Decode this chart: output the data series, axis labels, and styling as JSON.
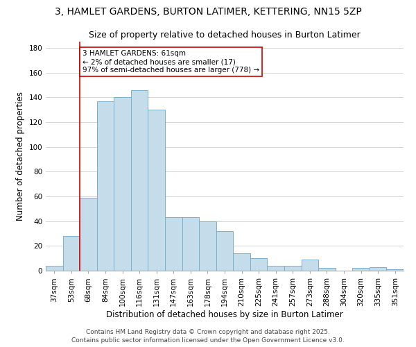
{
  "title": "3, HAMLET GARDENS, BURTON LATIMER, KETTERING, NN15 5ZP",
  "subtitle": "Size of property relative to detached houses in Burton Latimer",
  "xlabel": "Distribution of detached houses by size in Burton Latimer",
  "ylabel": "Number of detached properties",
  "bins": [
    "37sqm",
    "53sqm",
    "68sqm",
    "84sqm",
    "100sqm",
    "116sqm",
    "131sqm",
    "147sqm",
    "163sqm",
    "178sqm",
    "194sqm",
    "210sqm",
    "225sqm",
    "241sqm",
    "257sqm",
    "273sqm",
    "288sqm",
    "304sqm",
    "320sqm",
    "335sqm",
    "351sqm"
  ],
  "bar_heights": [
    4,
    28,
    59,
    137,
    140,
    146,
    130,
    43,
    43,
    40,
    32,
    14,
    10,
    4,
    4,
    9,
    2,
    0,
    2,
    3,
    1
  ],
  "bar_color": "#c5dcea",
  "bar_edge_color": "#7ab0cc",
  "grid_color": "#cccccc",
  "vline_x_index": 1.5,
  "vline_color": "#cc0000",
  "annotation_text": "3 HAMLET GARDENS: 61sqm\n← 2% of detached houses are smaller (17)\n97% of semi-detached houses are larger (778) →",
  "annotation_box_color": "#ffffff",
  "annotation_box_edge": "#cc0000",
  "ylim": [
    0,
    185
  ],
  "yticks": [
    0,
    20,
    40,
    60,
    80,
    100,
    120,
    140,
    160,
    180
  ],
  "footer1": "Contains HM Land Registry data © Crown copyright and database right 2025.",
  "footer2": "Contains public sector information licensed under the Open Government Licence v3.0.",
  "title_fontsize": 10,
  "subtitle_fontsize": 9,
  "xlabel_fontsize": 8.5,
  "ylabel_fontsize": 8.5,
  "tick_fontsize": 7.5,
  "footer_fontsize": 6.5,
  "annotation_fontsize": 7.5
}
